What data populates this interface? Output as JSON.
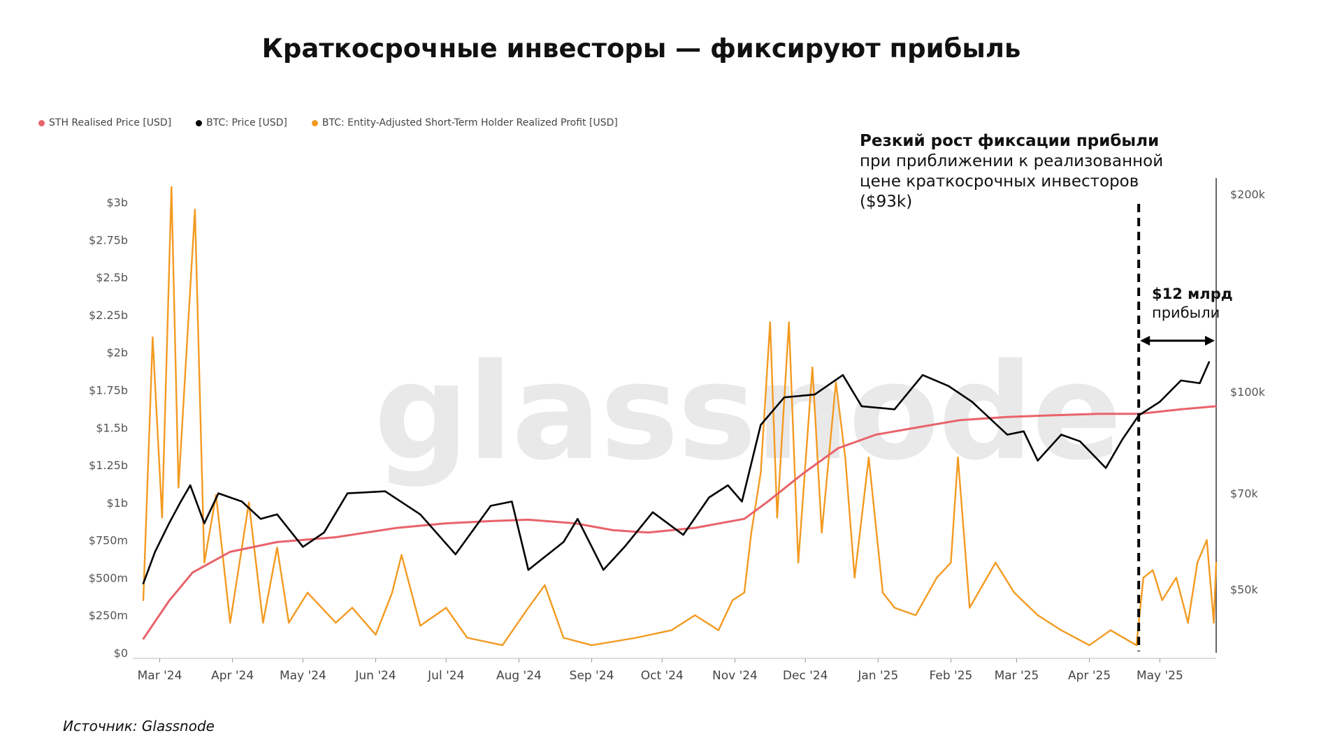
{
  "title": "Краткосрочные инвесторы — фиксируют прибыль",
  "source": "Источник: Glassnode",
  "watermark": "glassnode",
  "annotation": {
    "headline": "Резкий рост фиксации прибыли",
    "line1": "при приближении к реализованной",
    "line2": "цене краткосрочных инвесторов",
    "line3": "($93k)"
  },
  "profit_note": {
    "amount": "$12 млрд",
    "label": "прибыли"
  },
  "colors": {
    "sth_price": "#e8636a",
    "btc_price": "#000000",
    "profit": "#f39a21",
    "axis": "#666666"
  },
  "chart_data": {
    "type": "line",
    "legend": [
      {
        "name": "STH Realised Price [USD]",
        "color": "#e8636a"
      },
      {
        "name": "BTC: Price [USD]",
        "color": "#000000"
      },
      {
        "name": "BTC: Entity-Adjusted Short-Term Holder Realized Profit [USD]",
        "color": "#f39a21"
      }
    ],
    "x_ticks": [
      "Mar '24",
      "Apr '24",
      "May '24",
      "Jun '24",
      "Jul '24",
      "Aug '24",
      "Sep '24",
      "Oct '24",
      "Nov '24",
      "Dec '24",
      "Jan '25",
      "Feb '25",
      "Mar '25",
      "Apr '25",
      "May '25"
    ],
    "x_range": [
      "2024-02-23",
      "2025-05-25"
    ],
    "y_left_ticks": [
      "$0",
      "$250m",
      "$500m",
      "$750m",
      "$1b",
      "$1.25b",
      "$1.5b",
      "$1.75b",
      "$2b",
      "$2.25b",
      "$2.5b",
      "$2.75b",
      "$3b"
    ],
    "y_left_values": [
      0,
      0.25,
      0.5,
      0.75,
      1,
      1.25,
      1.5,
      1.75,
      2,
      2.25,
      2.5,
      2.75,
      3
    ],
    "y_left_unit": "USD billions",
    "y_left_range": [
      0,
      3.1
    ],
    "y_right_ticks": [
      "$50k",
      "$70k",
      "$100k",
      "$200k"
    ],
    "y_right_values": [
      50000,
      70000,
      100000,
      200000
    ],
    "y_right_scale": "log",
    "y_right_range": [
      40000,
      205000
    ],
    "marker_date": "2025-04-22",
    "series": [
      {
        "name": "STH Realised Price [USD]",
        "axis": "right",
        "points": [
          [
            "2024-02-23",
            42000
          ],
          [
            "2024-03-05",
            48000
          ],
          [
            "2024-03-15",
            53000
          ],
          [
            "2024-03-31",
            57000
          ],
          [
            "2024-04-20",
            59000
          ],
          [
            "2024-05-15",
            60000
          ],
          [
            "2024-06-10",
            62000
          ],
          [
            "2024-07-01",
            63000
          ],
          [
            "2024-07-20",
            63500
          ],
          [
            "2024-08-05",
            63800
          ],
          [
            "2024-08-25",
            63000
          ],
          [
            "2024-09-10",
            61500
          ],
          [
            "2024-09-25",
            61000
          ],
          [
            "2024-10-15",
            62000
          ],
          [
            "2024-11-05",
            64000
          ],
          [
            "2024-11-15",
            68000
          ],
          [
            "2024-11-30",
            75000
          ],
          [
            "2024-12-15",
            82000
          ],
          [
            "2024-12-31",
            86000
          ],
          [
            "2025-01-20",
            88500
          ],
          [
            "2025-02-05",
            90500
          ],
          [
            "2025-02-25",
            91500
          ],
          [
            "2025-03-15",
            92000
          ],
          [
            "2025-04-05",
            92500
          ],
          [
            "2025-04-22",
            92500
          ],
          [
            "2025-05-10",
            94000
          ],
          [
            "2025-05-25",
            95000
          ]
        ]
      },
      {
        "name": "BTC: Price [USD]",
        "axis": "right",
        "points": [
          [
            "2024-02-23",
            51000
          ],
          [
            "2024-02-28",
            57000
          ],
          [
            "2024-03-05",
            63000
          ],
          [
            "2024-03-10",
            68000
          ],
          [
            "2024-03-14",
            72000
          ],
          [
            "2024-03-20",
            63000
          ],
          [
            "2024-03-26",
            70000
          ],
          [
            "2024-04-05",
            68000
          ],
          [
            "2024-04-13",
            64000
          ],
          [
            "2024-04-20",
            65000
          ],
          [
            "2024-05-01",
            58000
          ],
          [
            "2024-05-10",
            61000
          ],
          [
            "2024-05-20",
            70000
          ],
          [
            "2024-06-05",
            70500
          ],
          [
            "2024-06-20",
            65000
          ],
          [
            "2024-07-05",
            56500
          ],
          [
            "2024-07-20",
            67000
          ],
          [
            "2024-07-29",
            68000
          ],
          [
            "2024-08-05",
            53500
          ],
          [
            "2024-08-20",
            59000
          ],
          [
            "2024-08-26",
            64000
          ],
          [
            "2024-09-06",
            53500
          ],
          [
            "2024-09-15",
            58000
          ],
          [
            "2024-09-27",
            65500
          ],
          [
            "2024-10-10",
            60500
          ],
          [
            "2024-10-21",
            69000
          ],
          [
            "2024-10-29",
            72000
          ],
          [
            "2024-11-04",
            68000
          ],
          [
            "2024-11-12",
            89000
          ],
          [
            "2024-11-22",
            98000
          ],
          [
            "2024-12-05",
            99000
          ],
          [
            "2024-12-17",
            106000
          ],
          [
            "2024-12-25",
            95000
          ],
          [
            "2025-01-08",
            94000
          ],
          [
            "2025-01-20",
            106000
          ],
          [
            "2025-01-31",
            102000
          ],
          [
            "2025-02-10",
            96500
          ],
          [
            "2025-02-25",
            86000
          ],
          [
            "2025-03-04",
            87000
          ],
          [
            "2025-03-10",
            78500
          ],
          [
            "2025-03-20",
            86000
          ],
          [
            "2025-03-28",
            84000
          ],
          [
            "2025-04-08",
            76500
          ],
          [
            "2025-04-15",
            84500
          ],
          [
            "2025-04-22",
            92000
          ],
          [
            "2025-05-01",
            96500
          ],
          [
            "2025-05-10",
            104000
          ],
          [
            "2025-05-18",
            103000
          ],
          [
            "2025-05-22",
            111000
          ]
        ]
      },
      {
        "name": "BTC: Entity-Adjusted Short-Term Holder Realized Profit [USD]",
        "axis": "left",
        "points": [
          [
            "2024-02-23",
            0.35
          ],
          [
            "2024-02-27",
            2.1
          ],
          [
            "2024-03-02",
            0.9
          ],
          [
            "2024-03-06",
            3.1
          ],
          [
            "2024-03-09",
            1.1
          ],
          [
            "2024-03-12",
            1.9
          ],
          [
            "2024-03-16",
            2.95
          ],
          [
            "2024-03-20",
            0.6
          ],
          [
            "2024-03-25",
            1.05
          ],
          [
            "2024-03-31",
            0.2
          ],
          [
            "2024-04-08",
            1.0
          ],
          [
            "2024-04-14",
            0.2
          ],
          [
            "2024-04-20",
            0.7
          ],
          [
            "2024-04-25",
            0.2
          ],
          [
            "2024-05-03",
            0.4
          ],
          [
            "2024-05-15",
            0.2
          ],
          [
            "2024-05-22",
            0.3
          ],
          [
            "2024-06-01",
            0.12
          ],
          [
            "2024-06-08",
            0.4
          ],
          [
            "2024-06-12",
            0.65
          ],
          [
            "2024-06-20",
            0.18
          ],
          [
            "2024-07-01",
            0.3
          ],
          [
            "2024-07-10",
            0.1
          ],
          [
            "2024-07-25",
            0.05
          ],
          [
            "2024-08-05",
            0.3
          ],
          [
            "2024-08-12",
            0.45
          ],
          [
            "2024-08-20",
            0.1
          ],
          [
            "2024-09-01",
            0.05
          ],
          [
            "2024-09-20",
            0.1
          ],
          [
            "2024-10-05",
            0.15
          ],
          [
            "2024-10-15",
            0.25
          ],
          [
            "2024-10-25",
            0.15
          ],
          [
            "2024-10-31",
            0.35
          ],
          [
            "2024-11-05",
            0.4
          ],
          [
            "2024-11-08",
            0.8
          ],
          [
            "2024-11-12",
            1.2
          ],
          [
            "2024-11-16",
            2.2
          ],
          [
            "2024-11-19",
            0.9
          ],
          [
            "2024-11-24",
            2.2
          ],
          [
            "2024-11-28",
            0.6
          ],
          [
            "2024-12-04",
            1.9
          ],
          [
            "2024-12-08",
            0.8
          ],
          [
            "2024-12-14",
            1.8
          ],
          [
            "2024-12-18",
            1.3
          ],
          [
            "2024-12-22",
            0.5
          ],
          [
            "2024-12-28",
            1.3
          ],
          [
            "2025-01-03",
            0.4
          ],
          [
            "2025-01-08",
            0.3
          ],
          [
            "2025-01-17",
            0.25
          ],
          [
            "2025-01-26",
            0.5
          ],
          [
            "2025-02-01",
            0.6
          ],
          [
            "2025-02-04",
            1.3
          ],
          [
            "2025-02-09",
            0.3
          ],
          [
            "2025-02-20",
            0.6
          ],
          [
            "2025-02-28",
            0.4
          ],
          [
            "2025-03-10",
            0.25
          ],
          [
            "2025-03-20",
            0.15
          ],
          [
            "2025-04-01",
            0.05
          ],
          [
            "2025-04-10",
            0.15
          ],
          [
            "2025-04-21",
            0.05
          ],
          [
            "2025-04-24",
            0.5
          ],
          [
            "2025-04-28",
            0.55
          ],
          [
            "2025-05-02",
            0.35
          ],
          [
            "2025-05-08",
            0.5
          ],
          [
            "2025-05-13",
            0.2
          ],
          [
            "2025-05-17",
            0.6
          ],
          [
            "2025-05-21",
            0.75
          ],
          [
            "2025-05-24",
            0.2
          ],
          [
            "2025-05-25",
            0.6
          ]
        ]
      }
    ]
  }
}
